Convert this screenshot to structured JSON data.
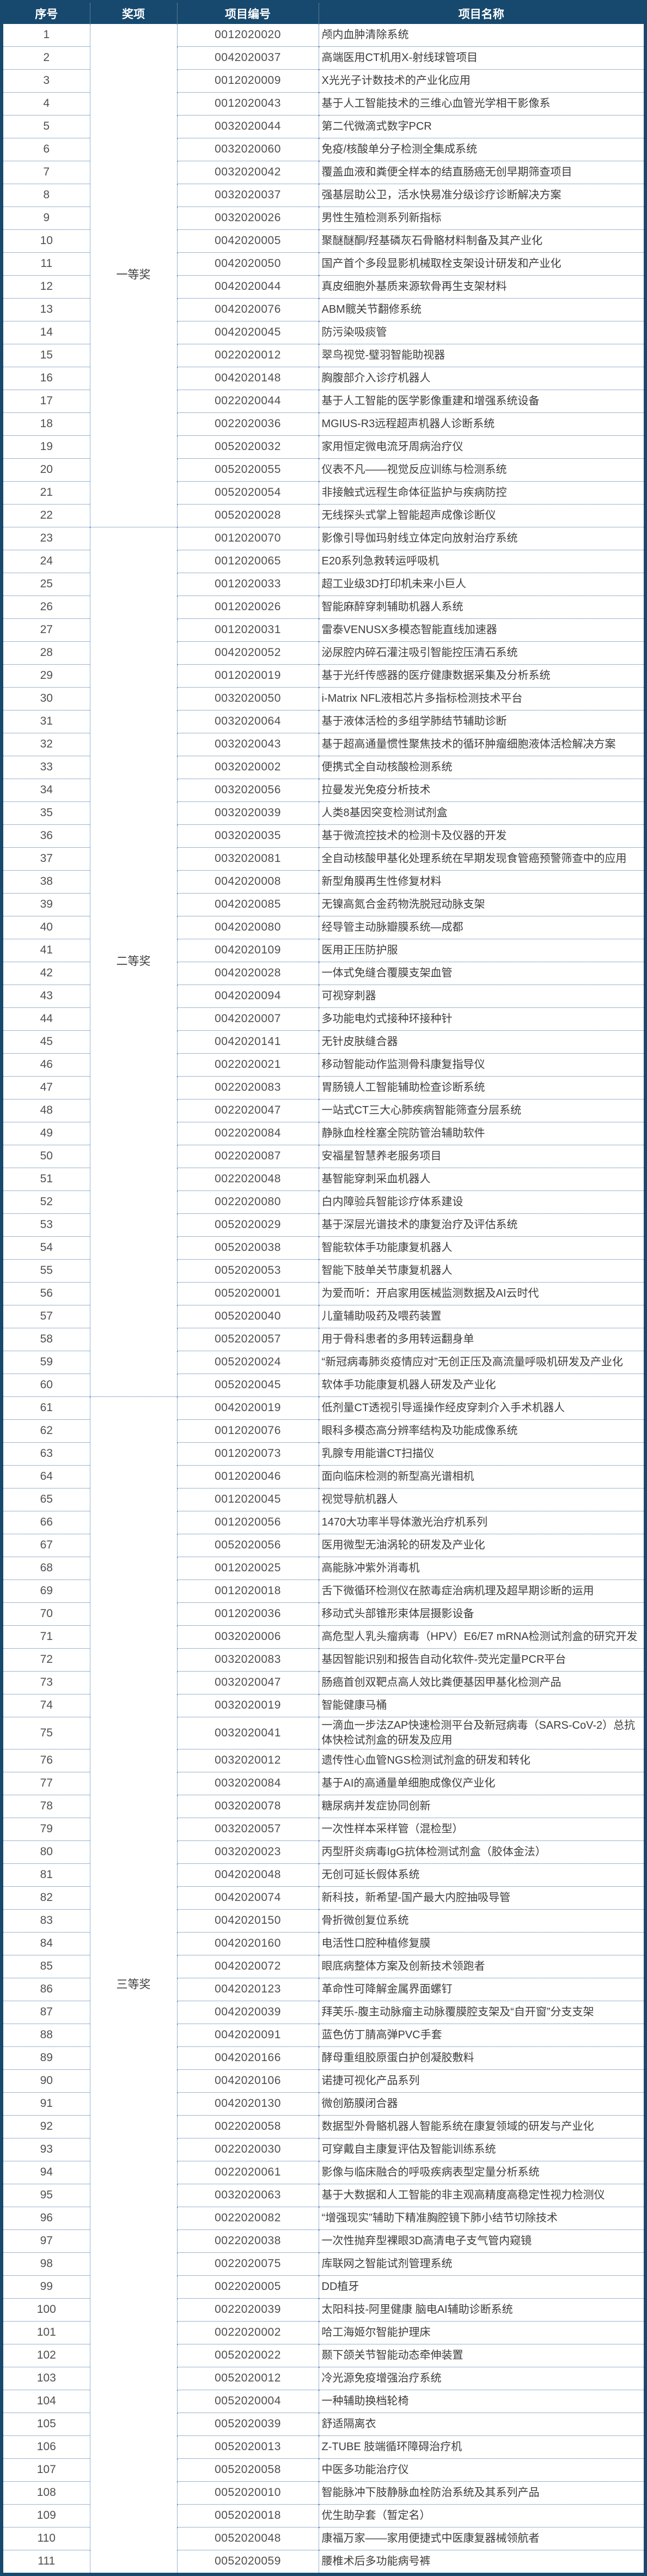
{
  "colors": {
    "header_bg": "#17496e",
    "outer_border": "#17496e",
    "dotted_line": "#38699e",
    "body_text": "#3c3c3c",
    "number_text": "#4f4f4f",
    "header_text": "#ffffff"
  },
  "table": {
    "columns": [
      "序号",
      "奖项",
      "项目编号",
      "项目名称"
    ],
    "awards": [
      {
        "label": "一等奖",
        "from": 1,
        "to": 22
      },
      {
        "label": "二等奖",
        "from": 23,
        "to": 60
      },
      {
        "label": "三等奖",
        "from": 61,
        "to": 111
      }
    ],
    "rows": [
      {
        "no": "1",
        "code": "0012020020",
        "name": "颅内血肿清除系统"
      },
      {
        "no": "2",
        "code": "0042020037",
        "name": "高端医用CT机用X-射线球管项目"
      },
      {
        "no": "3",
        "code": "0012020009",
        "name": "X光光子计数技术的产业化应用"
      },
      {
        "no": "4",
        "code": "0012020043",
        "name": "基于人工智能技术的三维心血管光学相干影像系"
      },
      {
        "no": "5",
        "code": "0032020044",
        "name": "第二代微滴式数字PCR"
      },
      {
        "no": "6",
        "code": "0032020060",
        "name": "免疫/核酸单分子检测全集成系统"
      },
      {
        "no": "7",
        "code": "0032020042",
        "name": "覆盖血液和粪便全样本的结直肠癌无创早期筛查项目"
      },
      {
        "no": "8",
        "code": "0032020037",
        "name": "强基层助公卫，活水快易准分级诊疗诊断解决方案"
      },
      {
        "no": "9",
        "code": "0032020026",
        "name": "男性生殖检测系列新指标"
      },
      {
        "no": "10",
        "code": "0042020005",
        "name": "聚醚醚酮/羟基磷灰石骨骼材料制备及其产业化"
      },
      {
        "no": "11",
        "code": "0042020050",
        "name": "国产首个多段显影机械取栓支架设计研发和产业化"
      },
      {
        "no": "12",
        "code": "0042020044",
        "name": "真皮细胞外基质来源软骨再生支架材料"
      },
      {
        "no": "13",
        "code": "0042020076",
        "name": "ABM髋关节翻修系统"
      },
      {
        "no": "14",
        "code": "0042020045",
        "name": "防污染吸痰管"
      },
      {
        "no": "15",
        "code": "0022020012",
        "name": "翠鸟视觉-璧羽智能助视器"
      },
      {
        "no": "16",
        "code": "0042020148",
        "name": "胸腹部介入诊疗机器人"
      },
      {
        "no": "17",
        "code": "0022020044",
        "name": "基于人工智能的医学影像重建和增强系统设备"
      },
      {
        "no": "18",
        "code": "0022020036",
        "name": "MGIUS-R3远程超声机器人诊断系统"
      },
      {
        "no": "19",
        "code": "0052020032",
        "name": "家用恒定微电流牙周病治疗仪"
      },
      {
        "no": "20",
        "code": "0052020055",
        "name": "仪表不凡——视觉反应训练与检测系统"
      },
      {
        "no": "21",
        "code": "0052020054",
        "name": "非接触式远程生命体征监护与疾病防控"
      },
      {
        "no": "22",
        "code": "0052020028",
        "name": "无线探头式掌上智能超声成像诊断仪"
      },
      {
        "no": "23",
        "code": "0012020070",
        "name": "影像引导伽玛射线立体定向放射治疗系统"
      },
      {
        "no": "24",
        "code": "0012020065",
        "name": "E20系列急救转运呼吸机"
      },
      {
        "no": "25",
        "code": "0012020033",
        "name": "超工业级3D打印机未来小巨人"
      },
      {
        "no": "26",
        "code": "0012020026",
        "name": "智能麻醉穿刺辅助机器人系统"
      },
      {
        "no": "27",
        "code": "0012020031",
        "name": "雷泰VENUSX多模态智能直线加速器"
      },
      {
        "no": "28",
        "code": "0042020052",
        "name": "泌尿腔内碎石灌注吸引智能控压清石系统"
      },
      {
        "no": "29",
        "code": "0012020019",
        "name": "基于光纤传感器的医疗健康数据采集及分析系统"
      },
      {
        "no": "30",
        "code": "0032020050",
        "name": "i-Matrix NFL液相芯片多指标检测技术平台"
      },
      {
        "no": "31",
        "code": "0032020064",
        "name": "基于液体活检的多组学肺结节辅助诊断"
      },
      {
        "no": "32",
        "code": "0032020043",
        "name": "基于超高通量惯性聚焦技术的循环肿瘤细胞液体活检解决方案"
      },
      {
        "no": "33",
        "code": "0032020002",
        "name": "便携式全自动核酸检测系统"
      },
      {
        "no": "34",
        "code": "0032020056",
        "name": "拉曼发光免疫分析技术"
      },
      {
        "no": "35",
        "code": "0032020039",
        "name": "人类8基因突变检测试剂盒"
      },
      {
        "no": "36",
        "code": "0032020035",
        "name": "基于微流控技术的检测卡及仪器的开发"
      },
      {
        "no": "37",
        "code": "0032020081",
        "name": "全自动核酸甲基化处理系统在早期发现食管癌预警筛查中的应用"
      },
      {
        "no": "38",
        "code": "0042020008",
        "name": "新型角膜再生性修复材料"
      },
      {
        "no": "39",
        "code": "0042020085",
        "name": "无镍高氮合金药物洗脱冠动脉支架"
      },
      {
        "no": "40",
        "code": "0042020080",
        "name": "经导管主动脉瓣膜系统—成都"
      },
      {
        "no": "41",
        "code": "0042020109",
        "name": "医用正压防护服"
      },
      {
        "no": "42",
        "code": "0042020028",
        "name": "一体式免缝合覆膜支架血管"
      },
      {
        "no": "43",
        "code": "0042020094",
        "name": "可视穿刺器"
      },
      {
        "no": "44",
        "code": "0042020007",
        "name": "多功能电灼式接种环接种针"
      },
      {
        "no": "45",
        "code": "0042020141",
        "name": "无针皮肤缝合器"
      },
      {
        "no": "46",
        "code": "0022020021",
        "name": "移动智能动作监测骨科康复指导仪"
      },
      {
        "no": "47",
        "code": "0022020083",
        "name": "胃肠镜人工智能辅助检查诊断系统"
      },
      {
        "no": "48",
        "code": "0022020047",
        "name": "一站式CT三大心肺疾病智能筛查分层系统"
      },
      {
        "no": "49",
        "code": "0022020084",
        "name": "静脉血栓栓塞全院防管治辅助软件"
      },
      {
        "no": "50",
        "code": "0022020087",
        "name": "安福星智慧养老服务项目"
      },
      {
        "no": "51",
        "code": "0022020048",
        "name": "基智能穿刺采血机器人"
      },
      {
        "no": "52",
        "code": "0022020080",
        "name": "白内障验兵智能诊疗体系建设"
      },
      {
        "no": "53",
        "code": "0052020029",
        "name": "基于深层光谱技术的康复治疗及评估系统"
      },
      {
        "no": "54",
        "code": "0052020038",
        "name": "智能软体手功能康复机器人"
      },
      {
        "no": "55",
        "code": "0052020053",
        "name": "智能下肢单关节康复机器人"
      },
      {
        "no": "56",
        "code": "0052020001",
        "name": "为爱而听：开启家用医械监测数据及AI云时代"
      },
      {
        "no": "57",
        "code": "0052020040",
        "name": "儿童辅助吸药及喂药装置"
      },
      {
        "no": "58",
        "code": "0052020057",
        "name": "用于骨科患者的多用转运翻身单"
      },
      {
        "no": "59",
        "code": "0052020024",
        "name": "“新冠病毒肺炎疫情应对”无创正压及高流量呼吸机研发及产业化"
      },
      {
        "no": "60",
        "code": "0052020045",
        "name": "软体手功能康复机器人研发及产业化"
      },
      {
        "no": "61",
        "code": "0042020019",
        "name": "低剂量CT透视引导遥操作经皮穿刺介入手术机器人"
      },
      {
        "no": "62",
        "code": "0012020076",
        "name": "眼科多模态高分辨率结构及功能成像系统"
      },
      {
        "no": "63",
        "code": "0012020073",
        "name": "乳腺专用能谱CT扫描仪"
      },
      {
        "no": "64",
        "code": "0012020046",
        "name": "面向临床检测的新型高光谱相机"
      },
      {
        "no": "65",
        "code": "0012020045",
        "name": "视觉导航机器人"
      },
      {
        "no": "66",
        "code": "0012020056",
        "name": "1470大功率半导体激光治疗机系列"
      },
      {
        "no": "67",
        "code": "0052020056",
        "name": "医用微型无油涡轮的研发及产业化"
      },
      {
        "no": "68",
        "code": "0012020025",
        "name": "高能脉冲紫外消毒机"
      },
      {
        "no": "69",
        "code": "0012020018",
        "name": "舌下微循环检测仪在脓毒症治病机理及超早期诊断的运用"
      },
      {
        "no": "70",
        "code": "0012020036",
        "name": "移动式头部锥形束体层摄影设备"
      },
      {
        "no": "71",
        "code": "0032020006",
        "name": "高危型人乳头瘤病毒（HPV）E6/E7 mRNA检测试剂盒的研究开发"
      },
      {
        "no": "72",
        "code": "0032020083",
        "name": "基因智能识别和报告自动化软件-荧光定量PCR平台"
      },
      {
        "no": "73",
        "code": "0032020047",
        "name": "肠癌首创双靶点高人效比粪便基因甲基化检测产品"
      },
      {
        "no": "74",
        "code": "0032020019",
        "name": "智能健康马桶"
      },
      {
        "no": "75",
        "code": "0032020041",
        "name": "一滴血一步法ZAP快速检测平台及新冠病毒（SARS-CoV-2）总抗体快检试剂盒的研发及应用"
      },
      {
        "no": "76",
        "code": "0032020012",
        "name": "遗传性心血管NGS检测试剂盒的研发和转化"
      },
      {
        "no": "77",
        "code": "0032020084",
        "name": "基于AI的高通量单细胞成像仪产业化"
      },
      {
        "no": "78",
        "code": "0032020078",
        "name": "糖尿病并发症协同创新"
      },
      {
        "no": "79",
        "code": "0032020057",
        "name": "一次性样本采样管（混检型）"
      },
      {
        "no": "80",
        "code": "0032020023",
        "name": "丙型肝炎病毒IgG抗体检测试剂盒（胶体金法）"
      },
      {
        "no": "81",
        "code": "0042020048",
        "name": "无创可延长假体系统"
      },
      {
        "no": "82",
        "code": "0042020074",
        "name": "新科技，新希望-国产最大内腔抽吸导管"
      },
      {
        "no": "83",
        "code": "0042020150",
        "name": "骨折微创复位系统"
      },
      {
        "no": "84",
        "code": "0042020160",
        "name": "电活性口腔种植修复膜"
      },
      {
        "no": "85",
        "code": "0042020072",
        "name": "眼底病整体方案及创新技术领跑者"
      },
      {
        "no": "86",
        "code": "0042020123",
        "name": "革命性可降解金属界面螺钉"
      },
      {
        "no": "87",
        "code": "0042020039",
        "name": "拜芙乐-腹主动脉瘤主动脉覆膜腔支架及“自开窗”分支支架"
      },
      {
        "no": "88",
        "code": "0042020091",
        "name": "蓝色仿丁腈高弹PVC手套"
      },
      {
        "no": "89",
        "code": "0042020166",
        "name": "酵母重组胶原蛋白护创凝胶敷料"
      },
      {
        "no": "90",
        "code": "0042020106",
        "name": "诺捷可视化产品系列"
      },
      {
        "no": "91",
        "code": "0042020130",
        "name": "微创筋膜闭合器"
      },
      {
        "no": "92",
        "code": "0022020058",
        "name": "数据型外骨骼机器人智能系统在康复领域的研发与产业化"
      },
      {
        "no": "93",
        "code": "0022020030",
        "name": "可穿戴自主康复评估及智能训练系统"
      },
      {
        "no": "94",
        "code": "0022020061",
        "name": "影像与临床融合的呼吸疾病表型定量分析系统"
      },
      {
        "no": "95",
        "code": "0032020063",
        "name": "基于大数据和人工智能的非主观高精度高稳定性视力检测仪"
      },
      {
        "no": "96",
        "code": "0022020082",
        "name": "“增强现实”辅助下精准胸腔镜下肺小结节切除技术"
      },
      {
        "no": "97",
        "code": "0022020038",
        "name": "一次性抛弃型裸眼3D高清电子支气管内窥镜"
      },
      {
        "no": "98",
        "code": "0022020075",
        "name": "库联网之智能试剂管理系统"
      },
      {
        "no": "99",
        "code": "0022020005",
        "name": "DD植牙"
      },
      {
        "no": "100",
        "code": "0022020039",
        "name": "太阳科技-阿里健康 脑电AI辅助诊断系统"
      },
      {
        "no": "101",
        "code": "0022020002",
        "name": "哈工海姬尔智能护理床"
      },
      {
        "no": "102",
        "code": "0052020022",
        "name": "颞下颌关节智能动态牵伸装置"
      },
      {
        "no": "103",
        "code": "0052020012",
        "name": "冷光源免疫增强治疗系统"
      },
      {
        "no": "104",
        "code": "0052020004",
        "name": "一种辅助换档轮椅"
      },
      {
        "no": "105",
        "code": "0052020039",
        "name": "舒适隔离衣"
      },
      {
        "no": "106",
        "code": "0052020013",
        "name": "Z-TUBE 肢端循环障碍治疗机"
      },
      {
        "no": "107",
        "code": "0052020058",
        "name": "中医多功能治疗仪"
      },
      {
        "no": "108",
        "code": "0052020010",
        "name": "智能脉冲下肢静脉血栓防治系统及其系列产品"
      },
      {
        "no": "109",
        "code": "0052020018",
        "name": "优生助孕套（暂定名）"
      },
      {
        "no": "110",
        "code": "0052020048",
        "name": "康福万家——家用便捷式中医康复器械领航者"
      },
      {
        "no": "111",
        "code": "0052020059",
        "name": "腰椎术后多功能病号裤"
      }
    ]
  }
}
